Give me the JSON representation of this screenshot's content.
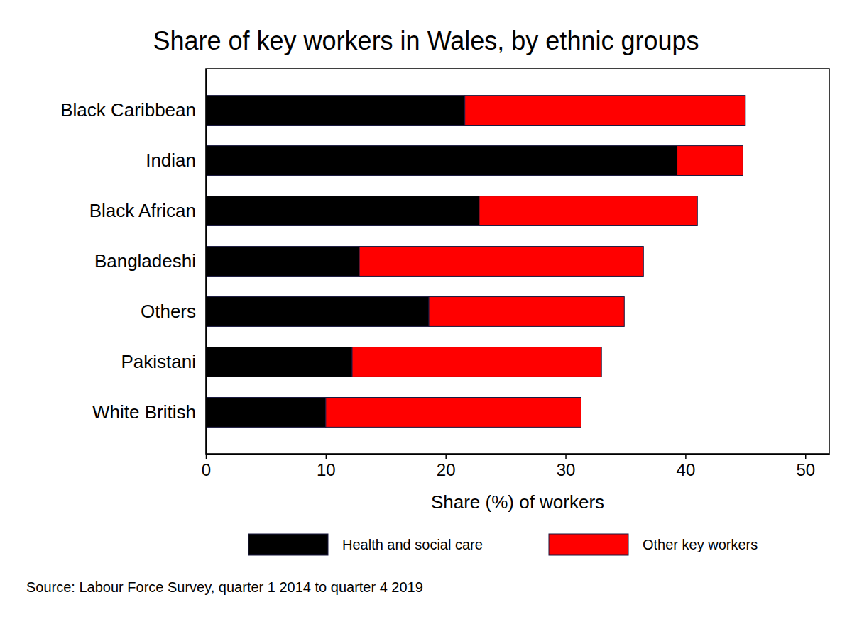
{
  "chart_data": {
    "type": "bar",
    "orientation": "horizontal",
    "stacked": true,
    "title": "Share of key workers in Wales, by ethnic groups",
    "x_label": "Share (%) of workers",
    "caption": "Source: Labour Force Survey, quarter 1 2014 to quarter 4 2019",
    "categories": [
      "Black Caribbean",
      "Indian",
      "Black African",
      "Bangladeshi",
      "Others",
      "Pakistani",
      "White British"
    ],
    "series": [
      {
        "name": "Health and social care",
        "color": "#000000",
        "values": [
          21.6,
          39.3,
          22.8,
          12.8,
          18.6,
          12.2,
          10.0
        ]
      },
      {
        "name": "Other key workers",
        "color": "#ff0000",
        "values": [
          23.4,
          5.5,
          18.2,
          23.7,
          16.3,
          20.8,
          21.3
        ]
      }
    ],
    "xlim": [
      0,
      52
    ],
    "xticks": [
      0,
      10,
      20,
      30,
      40,
      50
    ],
    "grid": false,
    "legend": "bottom"
  }
}
